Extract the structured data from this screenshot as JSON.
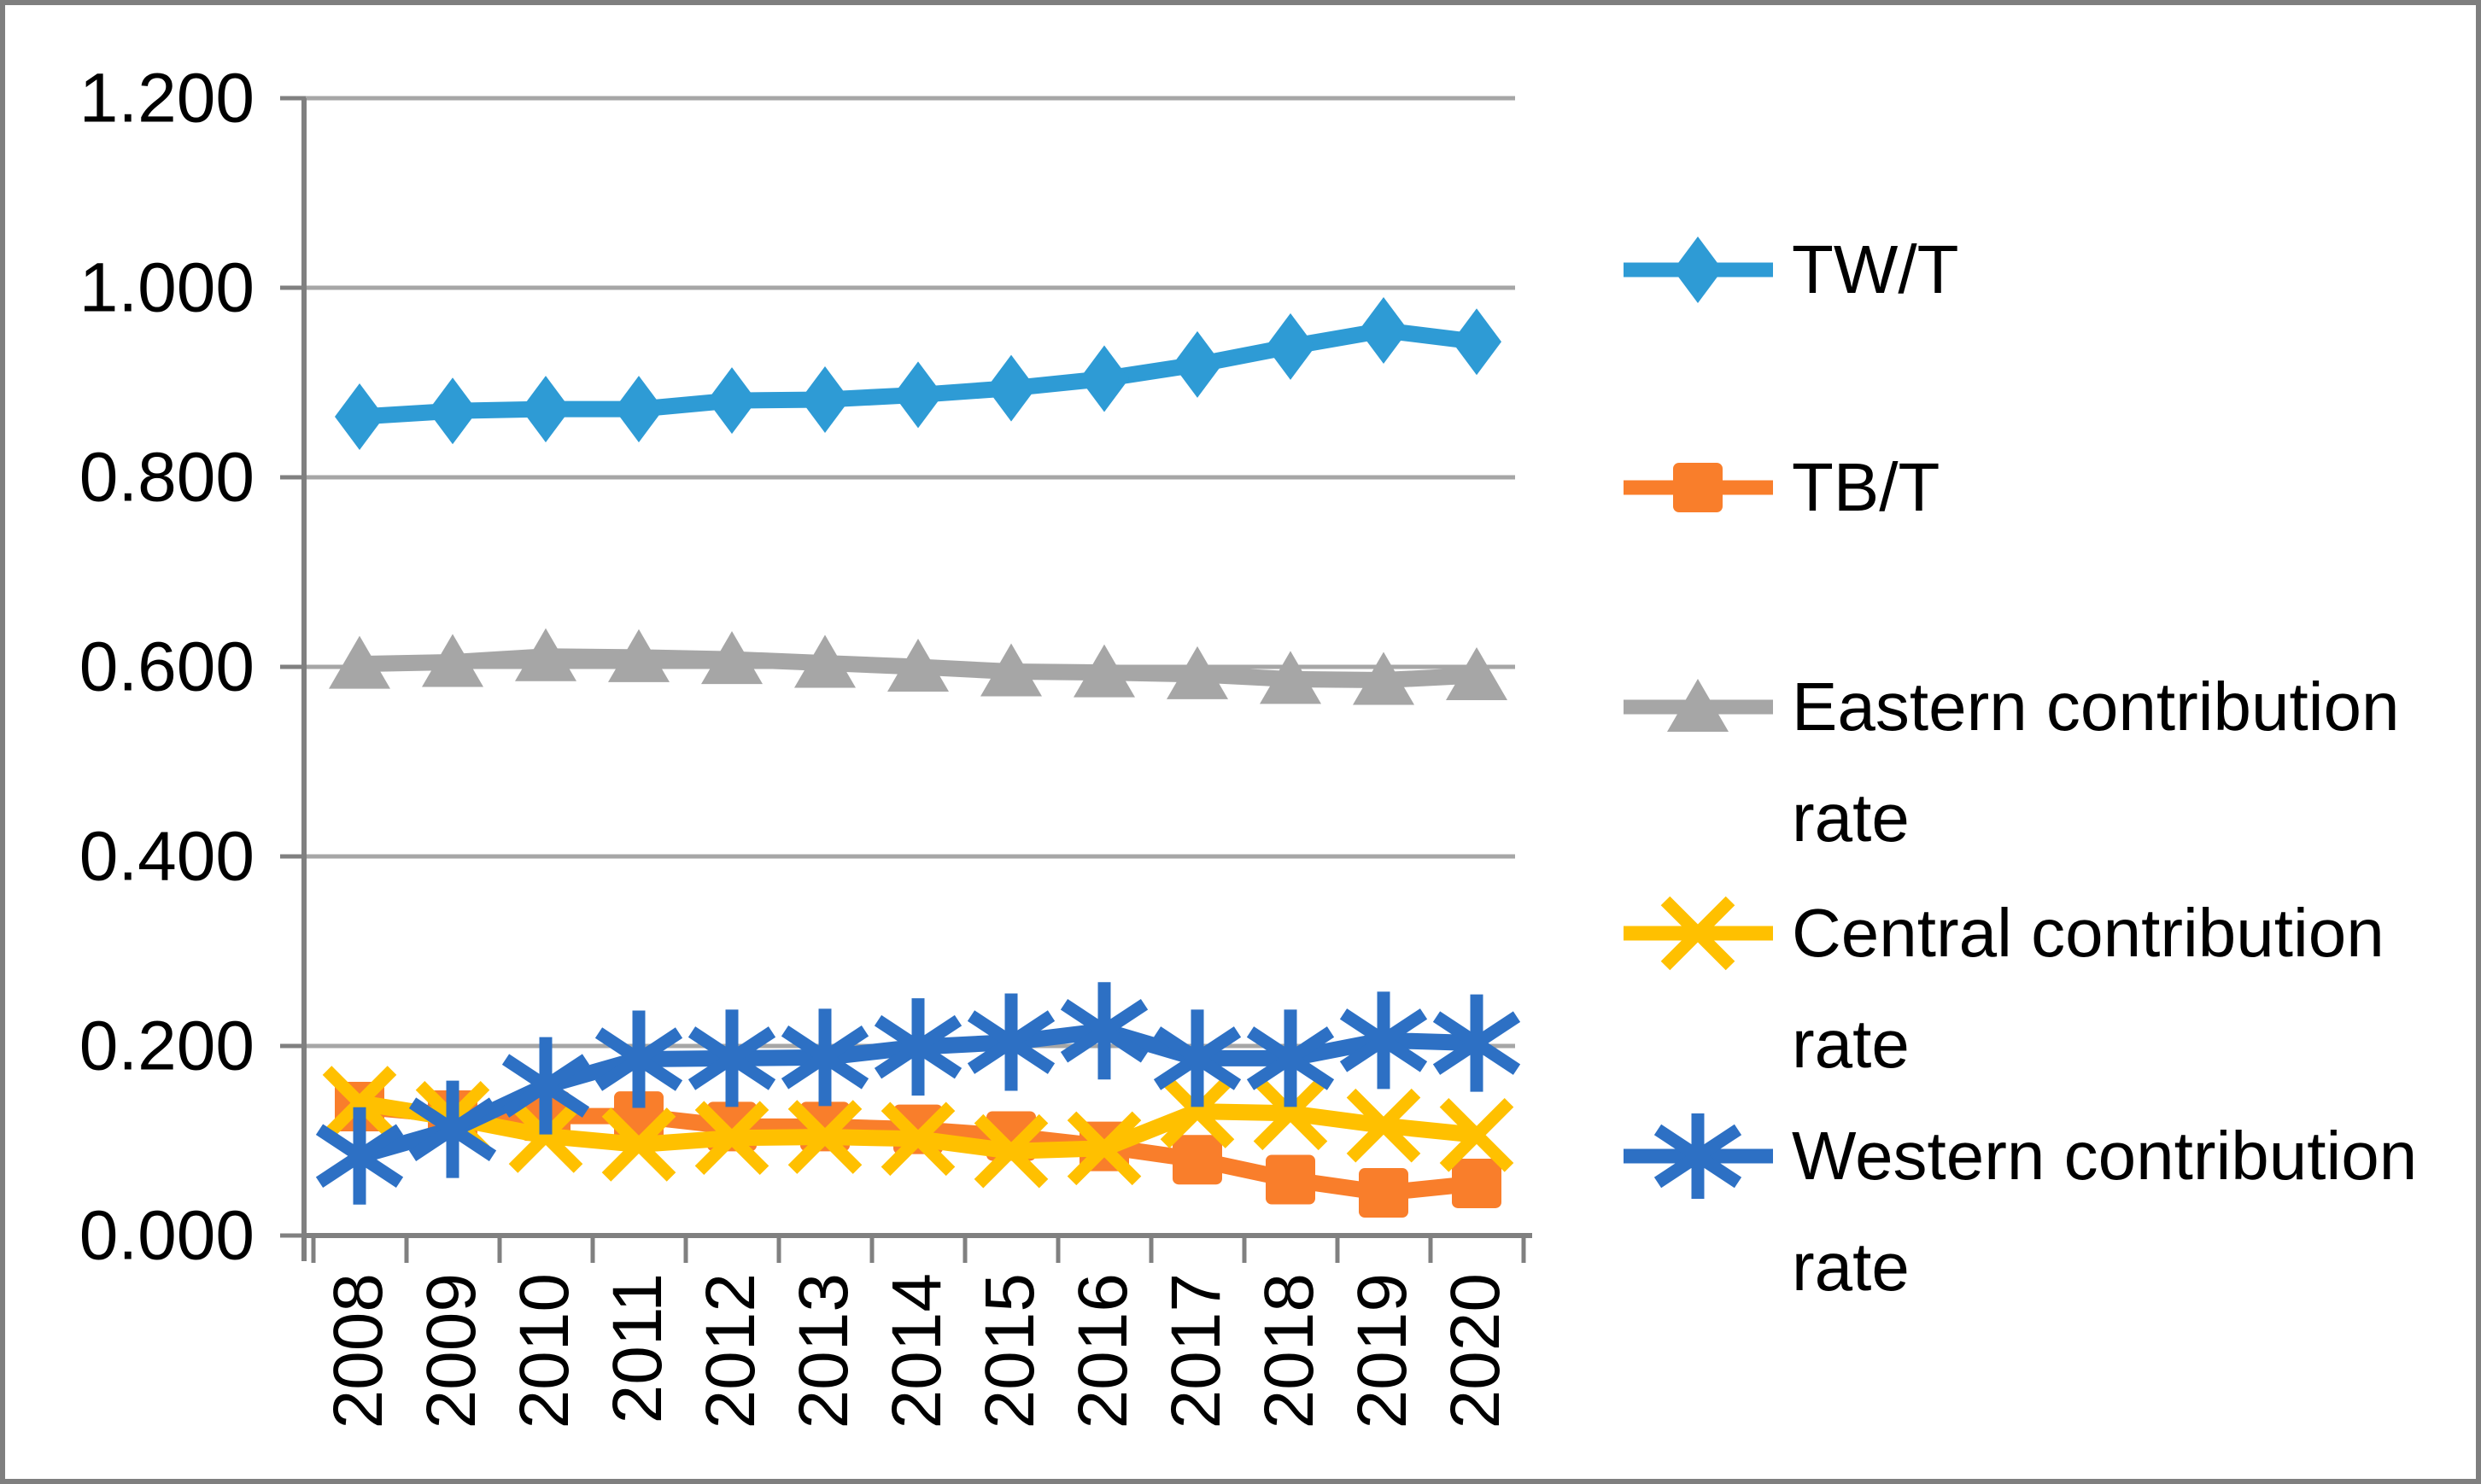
{
  "window": {
    "background": "#ffffff",
    "border_color": "#7f7f7f",
    "axis_color": "#808080",
    "gridline_color": "#a6a6a6",
    "text_color": "#000000"
  },
  "chart_data": {
    "type": "line",
    "title": "",
    "xlabel": "",
    "ylabel": "",
    "categories": [
      "2008",
      "2009",
      "2010",
      "2011",
      "2012",
      "2013",
      "2014",
      "2015",
      "2016",
      "2017",
      "2018",
      "2019",
      "2020"
    ],
    "series": [
      {
        "name": "TW/T",
        "marker": "diamond",
        "color": "#2e9bd5",
        "values": [
          0.864,
          0.87,
          0.872,
          0.872,
          0.881,
          0.882,
          0.887,
          0.894,
          0.904,
          0.919,
          0.938,
          0.955,
          0.943
        ]
      },
      {
        "name": "TB/T",
        "marker": "square",
        "color": "#f97e2b",
        "values": [
          0.136,
          0.127,
          0.126,
          0.126,
          0.115,
          0.115,
          0.112,
          0.105,
          0.094,
          0.08,
          0.059,
          0.045,
          0.055
        ]
      },
      {
        "name": "Eastern contribution rate",
        "marker": "triangle",
        "color": "#a6a6a6",
        "values": [
          0.603,
          0.605,
          0.611,
          0.61,
          0.608,
          0.604,
          0.6,
          0.595,
          0.594,
          0.592,
          0.587,
          0.586,
          0.591
        ]
      },
      {
        "name": "Central contribution rate",
        "marker": "x",
        "color": "#ffc000",
        "values": [
          0.14,
          0.124,
          0.105,
          0.096,
          0.103,
          0.104,
          0.102,
          0.089,
          0.092,
          0.131,
          0.129,
          0.116,
          0.106
        ]
      },
      {
        "name": "Western contribution rate",
        "marker": "asterisk",
        "color": "#2d70c4",
        "values": [
          0.084,
          0.112,
          0.158,
          0.186,
          0.187,
          0.188,
          0.199,
          0.204,
          0.216,
          0.187,
          0.187,
          0.206,
          0.203
        ]
      }
    ],
    "ylim": [
      0.0,
      1.2
    ],
    "ytick_labels": [
      "1.200",
      "1.000",
      "0.800",
      "0.600",
      "0.400",
      "0.200",
      "0.000"
    ],
    "grid": true,
    "legend_position": "right"
  }
}
